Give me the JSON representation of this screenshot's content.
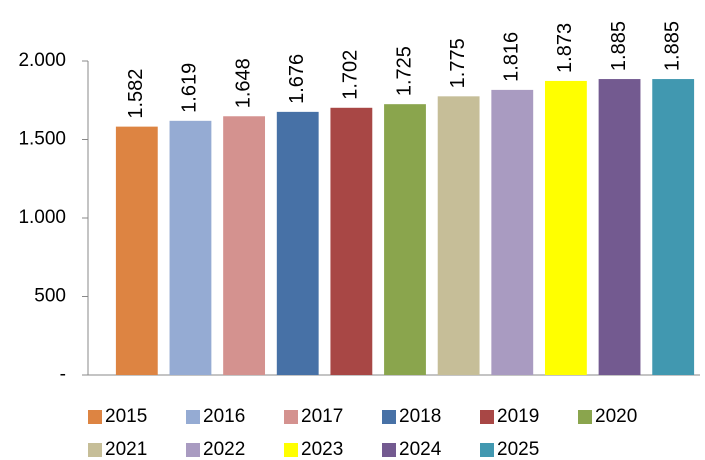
{
  "chart_data": {
    "type": "bar",
    "categories": [
      "2015",
      "2016",
      "2017",
      "2018",
      "2019",
      "2020",
      "2021",
      "2022",
      "2023",
      "2024",
      "2025"
    ],
    "values": [
      1582,
      1619,
      1648,
      1676,
      1702,
      1725,
      1775,
      1816,
      1873,
      1885,
      1885
    ],
    "value_labels": [
      "1.582",
      "1.619",
      "1.648",
      "1.676",
      "1.702",
      "1.725",
      "1.775",
      "1.816",
      "1.873",
      "1.885",
      "1.885"
    ],
    "colors": [
      "#dd8442",
      "#95abd3",
      "#d4928f",
      "#4771a6",
      "#a84745",
      "#8aa54d",
      "#c6be98",
      "#a99bc1",
      "#ffff00",
      "#735a90",
      "#4198b0"
    ],
    "ylim": [
      0,
      2000
    ],
    "yticks": [
      {
        "value": 0,
        "label": "-"
      },
      500,
      {
        "value": 1000,
        "label": "1.000"
      },
      {
        "value": 1500,
        "label": "1.500"
      },
      {
        "value": 2000,
        "label": "2.000"
      }
    ],
    "legend": "bottom"
  }
}
